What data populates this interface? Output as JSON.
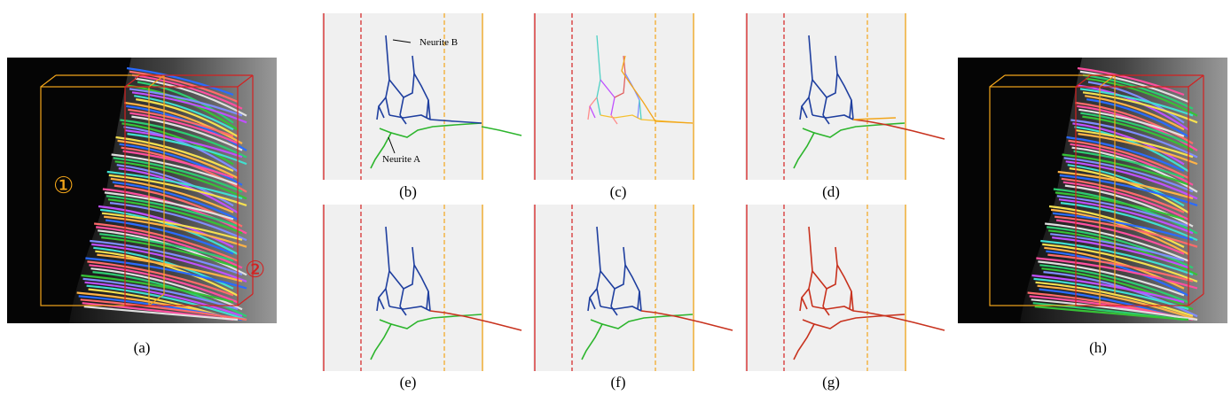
{
  "captions": {
    "a": "(a)",
    "b": "(b)",
    "c": "(c)",
    "d": "(d)",
    "e": "(e)",
    "f": "(f)",
    "g": "(g)",
    "h": "(h)"
  },
  "labels": {
    "neurite_a": "Neurite A",
    "neurite_b": "Neurite B",
    "box1": "①",
    "box2": "②"
  },
  "colors": {
    "region1": "#f2a51a",
    "region2": "#d42020",
    "panel_bg": "#f0f0f0",
    "neurite_a": "#2db52d",
    "neurite_b": "#1f3f9f",
    "merged": "#c8321e"
  }
}
